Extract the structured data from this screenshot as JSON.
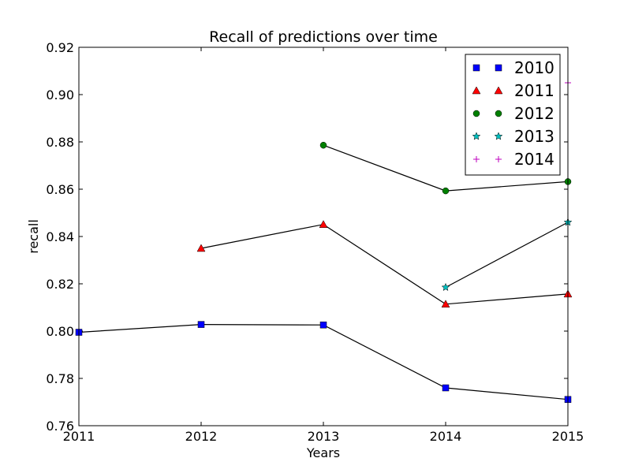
{
  "chart_data": {
    "type": "line",
    "title": "Recall of predictions over time",
    "xlabel": "Years",
    "ylabel": "recall",
    "xlim": [
      2011,
      2015
    ],
    "ylim": [
      0.76,
      0.92
    ],
    "x_ticks": [
      "2011",
      "2012",
      "2013",
      "2014",
      "2015"
    ],
    "y_ticks": [
      "0.76",
      "0.78",
      "0.80",
      "0.82",
      "0.84",
      "0.86",
      "0.88",
      "0.90",
      "0.92"
    ],
    "legend_position": "top-right",
    "series": [
      {
        "name": "2010",
        "marker": "square",
        "color": "#0000ff",
        "x": [
          2011,
          2012,
          2013,
          2014,
          2015
        ],
        "y": [
          0.7995,
          0.8028,
          0.8026,
          0.776,
          0.7711
        ]
      },
      {
        "name": "2011",
        "marker": "triangle",
        "color": "#ff0000",
        "x": [
          2012,
          2013,
          2014,
          2015
        ],
        "y": [
          0.835,
          0.8451,
          0.8114,
          0.8157
        ]
      },
      {
        "name": "2012",
        "marker": "circle",
        "color": "#008000",
        "x": [
          2013,
          2014,
          2015
        ],
        "y": [
          0.8786,
          0.8593,
          0.8632
        ]
      },
      {
        "name": "2013",
        "marker": "star",
        "color": "#00bfbf",
        "x": [
          2014,
          2015
        ],
        "y": [
          0.8185,
          0.846
        ]
      },
      {
        "name": "2014",
        "marker": "plus",
        "color": "#bf00bf",
        "x": [
          2015
        ],
        "y": [
          0.905
        ]
      }
    ]
  }
}
